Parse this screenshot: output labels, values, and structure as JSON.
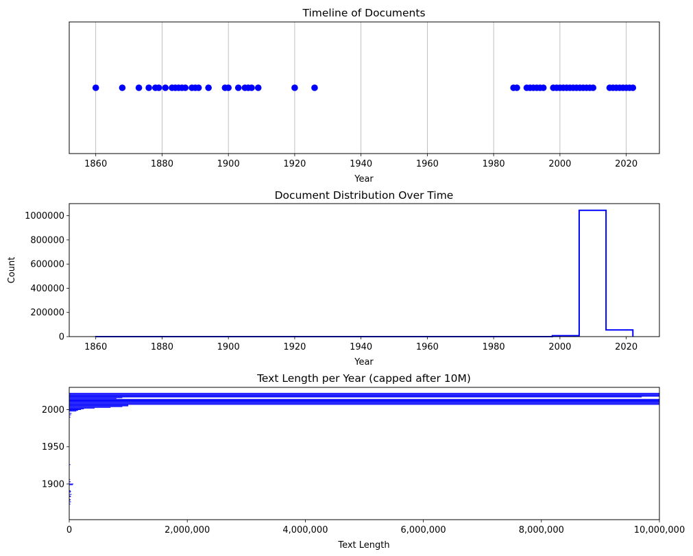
{
  "chart_data": [
    {
      "type": "scatter",
      "title": "Timeline of Documents",
      "xlabel": "Year",
      "ylabel": "",
      "xlim": [
        1852,
        2030
      ],
      "xticks": [
        1860,
        1880,
        1900,
        1920,
        1940,
        1960,
        1980,
        2000,
        2020
      ],
      "grid": "x",
      "marker_color": "#0000ff",
      "points": [
        1860,
        1868,
        1873,
        1876,
        1878,
        1879,
        1881,
        1883,
        1884,
        1885,
        1886,
        1887,
        1889,
        1890,
        1891,
        1894,
        1899,
        1900,
        1903,
        1905,
        1906,
        1907,
        1909,
        1920,
        1926,
        1986,
        1987,
        1990,
        1991,
        1992,
        1993,
        1994,
        1995,
        1998,
        1999,
        2000,
        2001,
        2002,
        2003,
        2004,
        2005,
        2006,
        2007,
        2008,
        2009,
        2010,
        2015,
        2016,
        2017,
        2018,
        2019,
        2020,
        2021,
        2022
      ]
    },
    {
      "type": "histogram",
      "title": "Document Distribution Over Time",
      "xlabel": "Year",
      "ylabel": "Count",
      "xlim": [
        1852,
        2030
      ],
      "ylim": [
        0,
        1100000
      ],
      "xticks": [
        1860,
        1880,
        1900,
        1920,
        1940,
        1960,
        1980,
        2000,
        2020
      ],
      "yticks": [
        0,
        200000,
        400000,
        600000,
        800000,
        1000000
      ],
      "line_color": "#0000ff",
      "bin_edges": [
        1860,
        1868.1,
        1876.2,
        1884.3,
        1892.4,
        1900.5,
        1908.6,
        1916.7,
        1924.8,
        1932.9,
        1941,
        1949.1,
        1957.2,
        1965.3,
        1973.4,
        1981.5,
        1989.6,
        1997.7,
        2005.8,
        2013.9,
        2022
      ],
      "counts": [
        2,
        3,
        5,
        4,
        3,
        2,
        1,
        1,
        0,
        0,
        0,
        0,
        0,
        0,
        0,
        10,
        60,
        8000,
        1045000,
        55000
      ]
    },
    {
      "type": "bar",
      "orientation": "horizontal",
      "title": "Text Length per Year (capped after 10M)",
      "xlabel": "Text Length",
      "ylabel": "",
      "xlim": [
        0,
        10000000
      ],
      "ylim": [
        1852,
        2030
      ],
      "xticks": [
        "0",
        "2,000,000",
        "4,000,000",
        "6,000,000",
        "8,000,000",
        "10,000,000"
      ],
      "yticks": [
        1900,
        1950,
        2000
      ],
      "bar_color": "#0000ff",
      "bars": [
        {
          "year": 1873,
          "value": 20000
        },
        {
          "year": 1876,
          "value": 30000
        },
        {
          "year": 1878,
          "value": 15000
        },
        {
          "year": 1879,
          "value": 25000
        },
        {
          "year": 1883,
          "value": 30000
        },
        {
          "year": 1884,
          "value": 20000
        },
        {
          "year": 1886,
          "value": 40000
        },
        {
          "year": 1889,
          "value": 25000
        },
        {
          "year": 1890,
          "value": 30000
        },
        {
          "year": 1891,
          "value": 20000
        },
        {
          "year": 1899,
          "value": 60000
        },
        {
          "year": 1900,
          "value": 70000
        },
        {
          "year": 1903,
          "value": 25000
        },
        {
          "year": 1906,
          "value": 15000
        },
        {
          "year": 1926,
          "value": 20000
        },
        {
          "year": 1990,
          "value": 20000
        },
        {
          "year": 1993,
          "value": 30000
        },
        {
          "year": 1995,
          "value": 40000
        },
        {
          "year": 1998,
          "value": 120000
        },
        {
          "year": 1999,
          "value": 150000
        },
        {
          "year": 2000,
          "value": 200000
        },
        {
          "year": 2001,
          "value": 250000
        },
        {
          "year": 2002,
          "value": 430000
        },
        {
          "year": 2003,
          "value": 700000
        },
        {
          "year": 2004,
          "value": 900000
        },
        {
          "year": 2005,
          "value": 1000000
        },
        {
          "year": 2006,
          "value": 1000000
        },
        {
          "year": 2007,
          "value": 10000000
        },
        {
          "year": 2008,
          "value": 10000000
        },
        {
          "year": 2009,
          "value": 10000000
        },
        {
          "year": 2010,
          "value": 10000000
        },
        {
          "year": 2011,
          "value": 10000000
        },
        {
          "year": 2012,
          "value": 10000000
        },
        {
          "year": 2013,
          "value": 10000000
        },
        {
          "year": 2014,
          "value": 10000000
        },
        {
          "year": 2015,
          "value": 800000
        },
        {
          "year": 2016,
          "value": 900000
        },
        {
          "year": 2017,
          "value": 9700000
        },
        {
          "year": 2018,
          "value": 10000000
        },
        {
          "year": 2019,
          "value": 10000000
        },
        {
          "year": 2020,
          "value": 10000000
        },
        {
          "year": 2021,
          "value": 10000000
        },
        {
          "year": 2022,
          "value": 10000000
        }
      ]
    }
  ]
}
